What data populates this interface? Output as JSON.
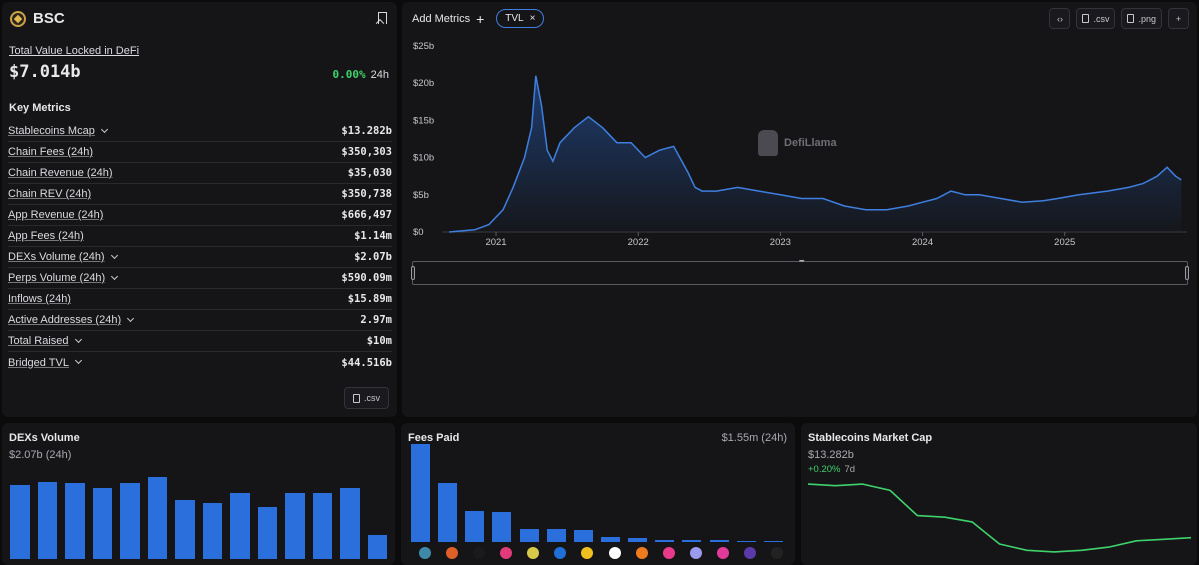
{
  "chain": {
    "name": "BSC"
  },
  "tvl": {
    "label": "Total Value Locked in DeFi",
    "value": "$7.014b",
    "change_pct": "0.00%",
    "change_period": "24h"
  },
  "key_metrics": {
    "title": "Key Metrics",
    "rows": [
      {
        "label": "Stablecoins Mcap",
        "value": "$13.282b",
        "dropdown": true
      },
      {
        "label": "Chain Fees (24h)",
        "value": "$350,303",
        "dropdown": false
      },
      {
        "label": "Chain Revenue (24h)",
        "value": "$35,030",
        "dropdown": false
      },
      {
        "label": "Chain REV (24h)",
        "value": "$350,738",
        "dropdown": false
      },
      {
        "label": "App Revenue (24h)",
        "value": "$666,497",
        "dropdown": false
      },
      {
        "label": "App Fees (24h)",
        "value": "$1.14m",
        "dropdown": false
      },
      {
        "label": "DEXs Volume (24h)",
        "value": "$2.07b",
        "dropdown": true
      },
      {
        "label": "Perps Volume (24h)",
        "value": "$590.09m",
        "dropdown": true
      },
      {
        "label": "Inflows (24h)",
        "value": "$15.89m",
        "dropdown": false
      },
      {
        "label": "Active Addresses (24h)",
        "value": "2.97m",
        "dropdown": true
      },
      {
        "label": "Total Raised",
        "value": "$10m",
        "dropdown": true
      },
      {
        "label": "Bridged TVL",
        "value": "$44.516b",
        "dropdown": true
      }
    ],
    "csv_label": ".csv"
  },
  "toolbar": {
    "add_metrics_label": "Add Metrics",
    "active_metric": "TVL",
    "embed_icon": "code-icon",
    "csv_label": ".csv",
    "png_label": ".png"
  },
  "watermark": "DefiLlama",
  "colors": {
    "accent": "#2a6fdb",
    "line": "#3f7fe0",
    "positive": "#3fd26b",
    "panel": "#151518"
  },
  "chart_data": [
    {
      "type": "area",
      "series": [
        {
          "name": "TVL"
        }
      ],
      "y_ticks": [
        "$0",
        "$5b",
        "$10b",
        "$15b",
        "$20b",
        "$25b"
      ],
      "x_ticks": [
        "2021",
        "2022",
        "2023",
        "2024",
        "2025"
      ],
      "ylim": [
        0,
        25
      ],
      "x": [
        2020.67,
        2020.85,
        2020.95,
        2021.05,
        2021.12,
        2021.2,
        2021.25,
        2021.28,
        2021.32,
        2021.36,
        2021.4,
        2021.45,
        2021.55,
        2021.65,
        2021.75,
        2021.85,
        2021.95,
        2022.05,
        2022.15,
        2022.25,
        2022.35,
        2022.4,
        2022.45,
        2022.55,
        2022.7,
        2022.85,
        2023.0,
        2023.15,
        2023.3,
        2023.45,
        2023.6,
        2023.75,
        2023.9,
        2024.0,
        2024.1,
        2024.2,
        2024.3,
        2024.4,
        2024.55,
        2024.7,
        2024.85,
        2024.95,
        2025.1,
        2025.3,
        2025.45,
        2025.55,
        2025.65,
        2025.72,
        2025.78,
        2025.82
      ],
      "y": [
        0.0,
        0.3,
        1.0,
        3.0,
        6.0,
        10.0,
        14.0,
        21.0,
        17.0,
        11.0,
        9.5,
        12.0,
        14.0,
        15.5,
        14.0,
        12.0,
        12.0,
        10.0,
        11.0,
        11.5,
        8.0,
        6.0,
        5.5,
        5.5,
        6.0,
        5.5,
        5.0,
        4.5,
        4.5,
        3.5,
        3.0,
        3.0,
        3.5,
        4.0,
        4.5,
        5.5,
        5.0,
        5.0,
        4.5,
        4.0,
        4.2,
        4.5,
        5.0,
        5.5,
        6.0,
        6.5,
        7.5,
        8.7,
        7.5,
        7.0
      ],
      "ylabel": "",
      "xlabel": ""
    },
    {
      "type": "bar",
      "title": "DEXs Volume",
      "value_label": "$2.07b (24h)",
      "values": [
        73,
        76,
        75,
        70,
        75,
        81,
        58,
        55,
        65,
        51,
        65,
        65,
        70,
        24
      ]
    },
    {
      "type": "bar",
      "title": "Fees Paid",
      "value_label": "$1.55m (24h)",
      "values": [
        82,
        49,
        26,
        25,
        11,
        11,
        10,
        4,
        3,
        2,
        2,
        1.5,
        1,
        1
      ],
      "category_icons": [
        "bnb-icon",
        "protocol-icon",
        "protocol-icon",
        "protocol-icon",
        "protocol-icon",
        "protocol-icon",
        "protocol-icon",
        "protocol-icon",
        "metamask-icon",
        "protocol-icon",
        "protocol-icon",
        "protocol-icon",
        "protocol-icon",
        "protocol-icon"
      ]
    },
    {
      "type": "line",
      "title": "Stablecoins Market Cap",
      "value_label": "$13.282b",
      "change": "+0.20%",
      "change_period": "7d",
      "values": [
        100,
        99,
        100,
        96,
        80,
        79,
        76,
        62,
        58,
        57,
        58,
        60,
        64,
        65,
        66
      ]
    }
  ]
}
